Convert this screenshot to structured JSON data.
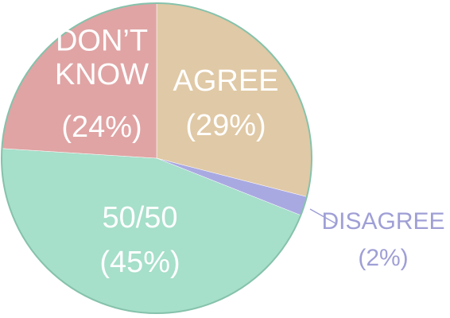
{
  "chart_data": {
    "type": "pie",
    "categories": [
      "AGREE",
      "DISAGREE",
      "50/50",
      "DON’T KNOW"
    ],
    "values": [
      29,
      2,
      45,
      24
    ],
    "value_labels": [
      "(29%)",
      "(2%)",
      "(45%)",
      "(24%)"
    ],
    "colors": [
      "#e0c9a6",
      "#a9a9e2",
      "#a6dfca",
      "#e0a4a4"
    ]
  }
}
